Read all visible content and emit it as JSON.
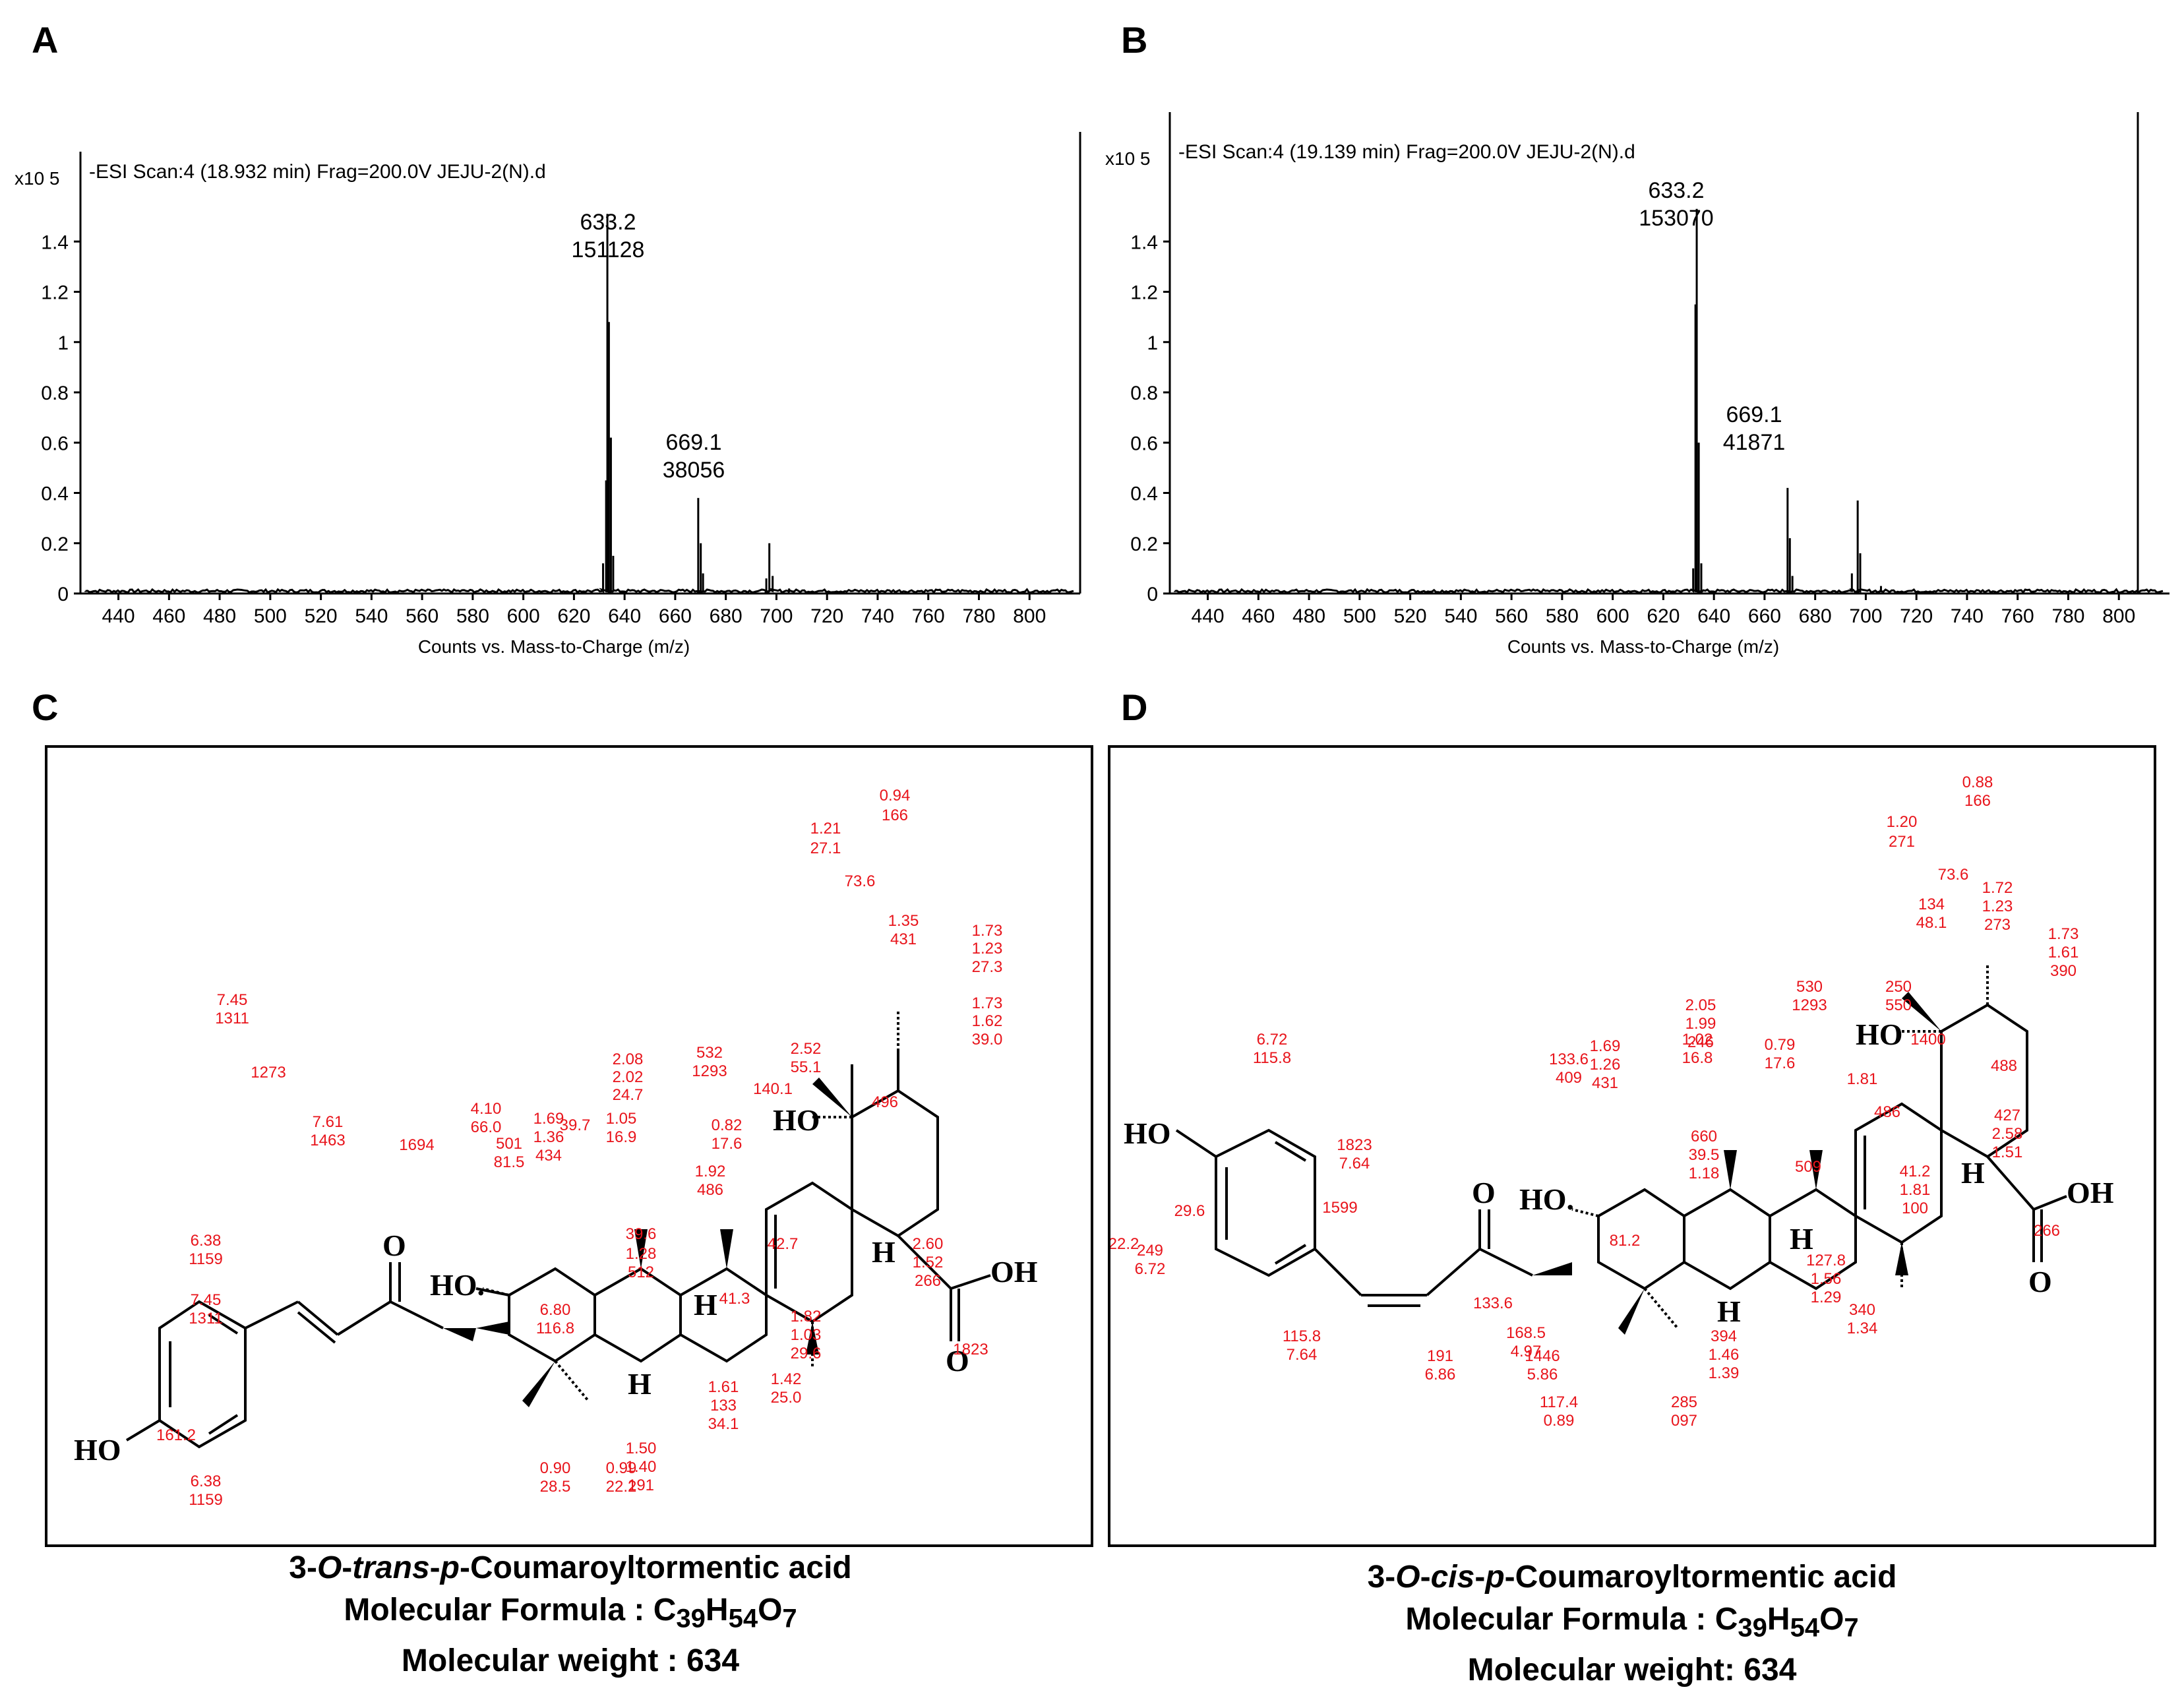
{
  "panels": {
    "A": {
      "letter": "A",
      "multiplier": "x10 5",
      "scan_label": "-ESI Scan:4 (18.932 min) Frag=200.0V JEJU-2(N).d",
      "xlabel": "Counts vs. Mass-to-Charge (m/z)",
      "peak1": {
        "mz": "633.2",
        "count": "151128"
      },
      "peak2": {
        "mz": "669.1",
        "count": "38056"
      }
    },
    "B": {
      "letter": "B",
      "multiplier": "x10 5",
      "scan_label": "-ESI Scan:4 (19.139 min) Frag=200.0V JEJU-2(N).d",
      "xlabel": "Counts vs. Mass-to-Charge (m/z)",
      "peak1": {
        "mz": "633.2",
        "count": "153070"
      },
      "peak2": {
        "mz": "669.1",
        "count": "41871"
      }
    },
    "C": {
      "letter": "C",
      "name_prefix": "3-",
      "name_o": "O",
      "name_dash1": "-",
      "name_isomer": "trans",
      "name_dash2": "-",
      "name_p": "p",
      "name_rest": "-Coumaroyltormentic  acid",
      "formula_label": "Molecular Formula : C",
      "formula_c": "39",
      "formula_h_sym": "H",
      "formula_h": "54",
      "formula_o_sym": "O",
      "formula_o": "7",
      "weight_line": "Molecular weight : 634",
      "atoms": {
        "ho1": "HO",
        "ho2": "HO.",
        "ho3": "HO",
        "oh": "OH",
        "o1": "O",
        "o2": "O",
        "h1": "H",
        "h2": "H",
        "h3": "H"
      },
      "nmr": [
        "0.94",
        "166",
        "1.21",
        "27.1",
        "73.6",
        "1.35",
        "431",
        "1.73",
        "1.23",
        "27.3",
        "1.73",
        "1.62",
        "39.0",
        "532",
        "1293",
        "2.52",
        "55.1",
        "496",
        "140.1",
        "2.08",
        "2.02",
        "24.7",
        "1.69",
        "1.36",
        "434",
        "1.05",
        "16.9",
        "0.82",
        "17.6",
        "1.92",
        "486",
        "42.7",
        "2.60",
        "1.52",
        "266",
        "1823",
        "4.10",
        "66.0",
        "39.6",
        "1.28",
        "512",
        "41.3",
        "1.82",
        "1.03",
        "29.6",
        "7.45",
        "1311",
        "6.80",
        "116.8",
        "1.42",
        "25.0",
        "1273",
        "7.61",
        "1463",
        "1694",
        "501",
        "81.5",
        "39.7",
        "1.61",
        "133",
        "34.1",
        "6.38",
        "1159",
        "7.45",
        "1311",
        "1.50",
        "1.40",
        "191",
        "161.2",
        "6.38",
        "1159",
        "0.90",
        "28.5",
        "0.99",
        "22.2"
      ]
    },
    "D": {
      "letter": "D",
      "name_prefix": "3-",
      "name_o": "O",
      "name_dash1": "-",
      "name_isomer": "cis",
      "name_dash2": "-",
      "name_p": "p",
      "name_rest": "-Coumaroyltormentic  acid",
      "formula_label": "Molecular Formula : C",
      "formula_c": "39",
      "formula_h_sym": "H",
      "formula_h": "54",
      "formula_o_sym": "O",
      "formula_o": "7",
      "weight_line": "Molecular weight: 634",
      "atoms": {
        "ho1": "HO",
        "ho2": "HO.",
        "ho3": "HO",
        "oh": "OH",
        "o1": "O",
        "o2": "O",
        "h1": "H",
        "h2": "H",
        "h3": "H"
      },
      "nmr": [
        "0.88",
        "166",
        "1.20",
        "271",
        "73.6",
        "1.72",
        "1.23",
        "273",
        "134",
        "48.1",
        "1.73",
        "1.61",
        "390",
        "530",
        "1293",
        "250",
        "550",
        "1400",
        "488",
        "2.05",
        "1.99",
        "246",
        "6.72",
        "115.8",
        "1.69",
        "1.26",
        "431",
        "1.02",
        "16.8",
        "0.79",
        "17.6",
        "1.81",
        "486",
        "427",
        "2.58",
        "1.51",
        "266",
        "1823",
        "7.64",
        "133.6",
        "409",
        "660",
        "39.5",
        "1.18",
        "509",
        "41.2",
        "1.81",
        "100",
        "29.6",
        "1599",
        "127.8",
        "1.56",
        "1.29",
        "340",
        "1.34",
        "249",
        "6.72",
        "115.8",
        "7.64",
        "133.6",
        "168.5",
        "4.97",
        "81.2",
        "394",
        "1.46",
        "1.39",
        "191",
        "6.86",
        "1446",
        "5.86",
        "117.4",
        "0.89",
        "285",
        "097",
        "22.2"
      ]
    }
  },
  "chart_data": [
    {
      "type": "line",
      "title": "-ESI Scan:4 (18.932 min) Frag=200.0V JEJU-2(N).d",
      "xlabel": "Counts vs. Mass-to-Charge (m/z)",
      "ylabel": "x10 5",
      "xlim": [
        425,
        820
      ],
      "ylim": [
        0,
        1.6
      ],
      "xticks": [
        440,
        460,
        480,
        500,
        520,
        540,
        560,
        580,
        600,
        620,
        640,
        660,
        680,
        700,
        720,
        740,
        760,
        780,
        800
      ],
      "yticks": [
        0,
        0.2,
        0.4,
        0.6,
        0.8,
        1,
        1.2,
        1.4
      ],
      "grid": false,
      "peaks": [
        {
          "x": 631.5,
          "y": 0.12
        },
        {
          "x": 632.7,
          "y": 0.45
        },
        {
          "x": 633.2,
          "y": 1.51
        },
        {
          "x": 633.8,
          "y": 1.08
        },
        {
          "x": 634.6,
          "y": 0.62
        },
        {
          "x": 635.5,
          "y": 0.15
        },
        {
          "x": 669.1,
          "y": 0.38
        },
        {
          "x": 670.1,
          "y": 0.2
        },
        {
          "x": 671.0,
          "y": 0.08
        },
        {
          "x": 696.0,
          "y": 0.06
        },
        {
          "x": 697.2,
          "y": 0.2
        },
        {
          "x": 698.5,
          "y": 0.07
        },
        {
          "x": 705,
          "y": 0.02
        }
      ]
    },
    {
      "type": "line",
      "title": "-ESI Scan:4 (19.139 min) Frag=200.0V JEJU-2(N).d",
      "xlabel": "Counts vs. Mass-to-Charge (m/z)",
      "ylabel": "x10 5",
      "xlim": [
        425,
        820
      ],
      "ylim": [
        0,
        1.6
      ],
      "xticks": [
        440,
        460,
        480,
        500,
        520,
        540,
        560,
        580,
        600,
        620,
        640,
        660,
        680,
        700,
        720,
        740,
        760,
        780,
        800
      ],
      "yticks": [
        0,
        0.2,
        0.4,
        0.6,
        0.8,
        1,
        1.2,
        1.4
      ],
      "grid": false,
      "peaks": [
        {
          "x": 631.8,
          "y": 0.1
        },
        {
          "x": 632.7,
          "y": 1.15
        },
        {
          "x": 633.2,
          "y": 1.53
        },
        {
          "x": 634.0,
          "y": 0.6
        },
        {
          "x": 635.0,
          "y": 0.12
        },
        {
          "x": 669.1,
          "y": 0.42
        },
        {
          "x": 670.0,
          "y": 0.22
        },
        {
          "x": 671.0,
          "y": 0.07
        },
        {
          "x": 694.5,
          "y": 0.08
        },
        {
          "x": 696.8,
          "y": 0.37
        },
        {
          "x": 697.8,
          "y": 0.16
        },
        {
          "x": 706,
          "y": 0.03
        }
      ]
    }
  ]
}
